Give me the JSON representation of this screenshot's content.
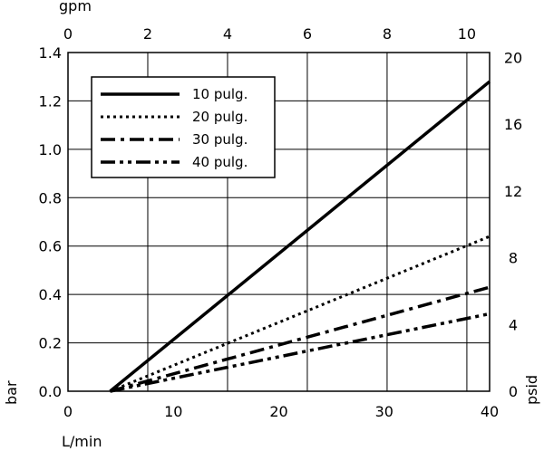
{
  "chart_data": {
    "type": "line",
    "x": [
      4,
      40
    ],
    "series": [
      {
        "name": "10 pulg.",
        "values": [
          0,
          1.28
        ],
        "dash": "solid"
      },
      {
        "name": "20 pulg.",
        "values": [
          0,
          0.64
        ],
        "dash": "dot"
      },
      {
        "name": "30 pulg.",
        "values": [
          0,
          0.43
        ],
        "dash": "dashdot"
      },
      {
        "name": "40 pulg.",
        "values": [
          0,
          0.32
        ],
        "dash": "dashdotdot"
      }
    ],
    "bottom_axis": {
      "label": "L/min",
      "ticks": [
        "0",
        "10",
        "20",
        "30",
        "40"
      ],
      "range": [
        0,
        40
      ]
    },
    "top_axis": {
      "label": "gpm",
      "ticks": [
        "0",
        "2",
        "4",
        "6",
        "8",
        "10"
      ],
      "range": [
        0,
        10.57
      ]
    },
    "left_axis": {
      "label": "bar",
      "ticks": [
        "0.0",
        "0.2",
        "0.4",
        "0.6",
        "0.8",
        "1.0",
        "1.2",
        "1.4"
      ],
      "range": [
        0,
        1.4
      ]
    },
    "right_axis": {
      "label": "psid",
      "ticks": [
        "0",
        "4",
        "8",
        "12",
        "16",
        "20"
      ],
      "range": [
        0,
        20.3
      ]
    },
    "grid": true,
    "legend_position": "top-left"
  }
}
